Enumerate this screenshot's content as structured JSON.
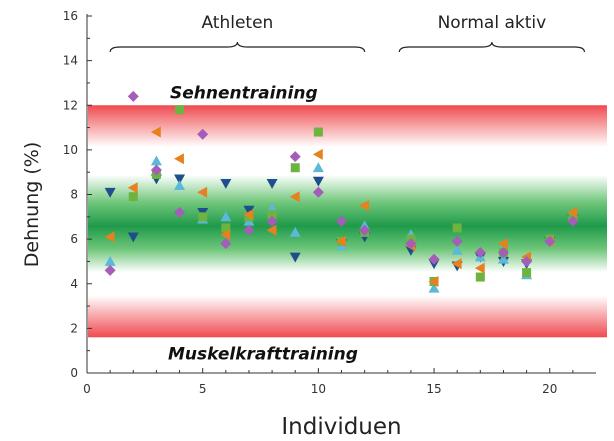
{
  "chart_data": {
    "type": "scatter",
    "xlabel": "Individuen",
    "ylabel": "Dehnung (%)",
    "xlim": [
      0,
      22
    ],
    "ylim": [
      0,
      16
    ],
    "x_ticks": [
      0,
      5,
      10,
      15,
      20
    ],
    "y_ticks": [
      0,
      2,
      4,
      6,
      8,
      10,
      12,
      14,
      16
    ],
    "groups": [
      {
        "label": "Athleten",
        "x_range": [
          1,
          12
        ]
      },
      {
        "label": "Normal aktiv",
        "x_range": [
          13.5,
          21.5
        ]
      }
    ],
    "zones": [
      {
        "label": "Sehnentraining",
        "y_range": [
          1.6,
          12.0
        ],
        "optimal_y_range": [
          4.5,
          8.9
        ]
      },
      {
        "label": "Muskelkrafttraining"
      }
    ],
    "series": [
      {
        "marker": "triangle-down",
        "color": "#1f4e8c",
        "x": [
          1,
          2,
          3,
          4,
          5,
          6,
          7,
          8,
          9,
          10,
          11,
          12,
          14,
          15,
          16,
          17,
          18,
          19,
          20,
          21
        ],
        "y": [
          8.1,
          6.1,
          8.7,
          8.7,
          7.2,
          8.5,
          7.3,
          8.5,
          5.2,
          8.6,
          5.8,
          6.1,
          5.5,
          4.9,
          4.8,
          5.2,
          5.0,
          4.9,
          5.9,
          6.9
        ]
      },
      {
        "marker": "triangle-up",
        "color": "#5bb8d8",
        "x": [
          1,
          3,
          4,
          5,
          6,
          7,
          8,
          9,
          10,
          11,
          12,
          14,
          15,
          16,
          17,
          18,
          19,
          20,
          21
        ],
        "y": [
          5.0,
          9.5,
          8.4,
          6.9,
          7.0,
          6.8,
          7.4,
          6.3,
          9.2,
          5.7,
          6.6,
          6.2,
          3.8,
          5.5,
          5.2,
          5.1,
          4.4,
          6.0,
          7.0
        ]
      },
      {
        "marker": "square",
        "color": "#6db33f",
        "x": [
          2,
          3,
          4,
          5,
          6,
          7,
          8,
          9,
          10,
          11,
          12,
          14,
          15,
          16,
          17,
          18,
          19,
          20,
          21
        ],
        "y": [
          7.9,
          8.9,
          11.8,
          7.0,
          6.5,
          7.0,
          7.1,
          9.2,
          10.8,
          5.9,
          6.3,
          6.0,
          4.1,
          6.5,
          4.3,
          5.4,
          4.5,
          6.0,
          7.0
        ]
      },
      {
        "marker": "triangle-left",
        "color": "#e8801e",
        "x": [
          1,
          2,
          3,
          4,
          5,
          6,
          7,
          8,
          9,
          10,
          11,
          12,
          14,
          15,
          16,
          17,
          18,
          19,
          20,
          21
        ],
        "y": [
          6.1,
          8.3,
          10.8,
          9.6,
          8.1,
          6.2,
          7.1,
          6.4,
          7.9,
          9.8,
          5.9,
          7.5,
          5.7,
          4.1,
          4.9,
          4.7,
          5.8,
          5.2,
          5.9,
          7.2
        ]
      },
      {
        "marker": "diamond",
        "color": "#a45db8",
        "x": [
          1,
          2,
          3,
          4,
          5,
          6,
          7,
          8,
          9,
          10,
          11,
          12,
          14,
          15,
          16,
          17,
          18,
          19,
          20,
          21
        ],
        "y": [
          4.6,
          12.4,
          9.1,
          7.2,
          10.7,
          5.8,
          6.4,
          6.8,
          9.7,
          8.1,
          6.8,
          6.4,
          5.8,
          5.1,
          5.9,
          5.4,
          5.4,
          5.0,
          5.9,
          6.8
        ]
      }
    ]
  }
}
